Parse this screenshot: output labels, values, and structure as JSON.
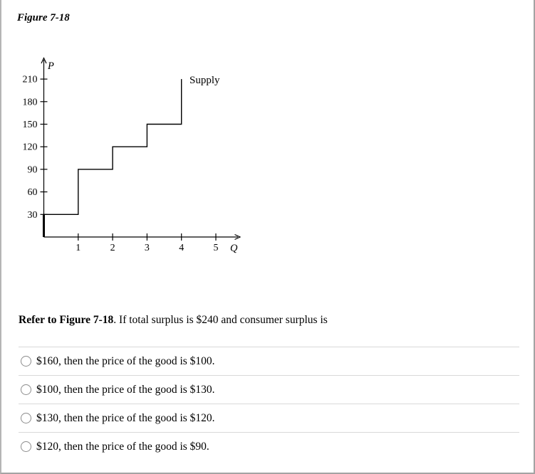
{
  "figure": {
    "title": "Figure 7-18"
  },
  "chart_data": {
    "type": "line",
    "subtype": "step-function-supply-curve",
    "title": "",
    "xlabel": "Q",
    "ylabel": "P",
    "x_ticks": [
      1,
      2,
      3,
      4,
      5
    ],
    "y_ticks": [
      30,
      60,
      90,
      120,
      150,
      180,
      210
    ],
    "xlim": [
      0,
      5.7
    ],
    "ylim": [
      0,
      240
    ],
    "grid": false,
    "line_color": "#000000",
    "series": [
      {
        "name": "Supply",
        "step_points": [
          [
            0,
            0
          ],
          [
            0,
            30
          ],
          [
            1,
            30
          ],
          [
            1,
            90
          ],
          [
            2,
            90
          ],
          [
            2,
            120
          ],
          [
            3,
            120
          ],
          [
            3,
            150
          ],
          [
            4,
            150
          ],
          [
            4,
            210
          ]
        ]
      }
    ],
    "annotations": [
      {
        "text": "Supply",
        "anchor_data_point": [
          4,
          210
        ],
        "position": "right-of-curve-top"
      }
    ]
  },
  "question": {
    "ref_bold": "Refer to Figure 7-18",
    "rest": ". If total surplus is $240 and consumer surplus is"
  },
  "options": [
    "$160, then the price of the good is $100.",
    "$100, then the price of the good is $130.",
    "$130, then the price of the good is $120.",
    "$120, then the price of the good is $90."
  ]
}
